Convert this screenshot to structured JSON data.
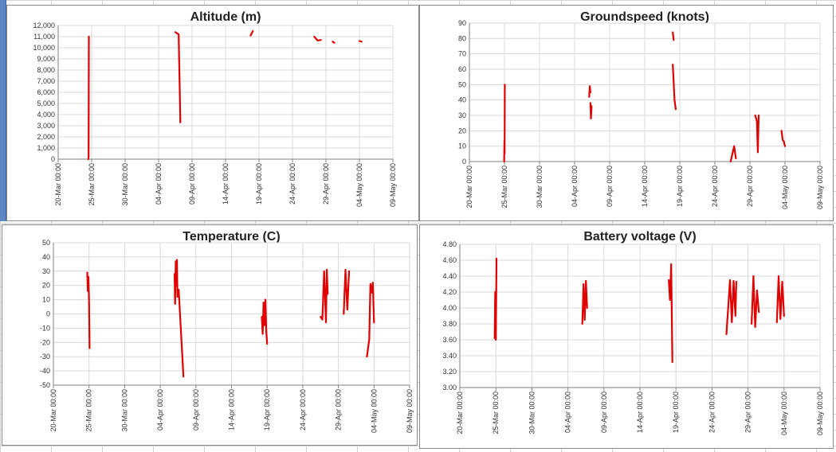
{
  "chart_data": [
    {
      "type": "line",
      "title": "Altitude (m)",
      "xlabel": "",
      "ylabel": "",
      "ylim": [
        0,
        12000
      ],
      "yticks": [
        "0",
        "1,000",
        "2,000",
        "3,000",
        "4,000",
        "5,000",
        "6,000",
        "7,000",
        "8,000",
        "9,000",
        "10,000",
        "11,000",
        "12,000"
      ],
      "xticks": [
        "20-Mar 00:00",
        "25-Mar 00:00",
        "30-Mar 00:00",
        "04-Apr 00:00",
        "09-Apr 00:00",
        "14-Apr 00:00",
        "19-Apr 00:00",
        "24-Apr 00:00",
        "29-Apr 00:00",
        "04-May 00:00",
        "09-May 00:00"
      ],
      "xlim": [
        "2021-03-20",
        "2021-05-09"
      ],
      "grid": true,
      "color": "#e00000",
      "segments": [
        [
          [
            "2021-03-24T12:00",
            0
          ],
          [
            "2021-03-24T13:00",
            200
          ],
          [
            "2021-03-24T14:00",
            11000
          ]
        ],
        [
          [
            "2021-04-06T12:00",
            11400
          ],
          [
            "2021-04-07T00:00",
            11200
          ],
          [
            "2021-04-07T06:00",
            3300
          ]
        ],
        [
          [
            "2021-04-17T18:00",
            11100
          ],
          [
            "2021-04-18T00:00",
            11400
          ],
          [
            "2021-04-18T02:00",
            11500
          ]
        ],
        [
          [
            "2021-04-27T06:00",
            11000
          ],
          [
            "2021-04-27T18:00",
            10650
          ],
          [
            "2021-04-28T06:00",
            10700
          ]
        ],
        [
          [
            "2021-04-30T00:00",
            10550
          ],
          [
            "2021-04-30T06:00",
            10450
          ]
        ],
        [
          [
            "2021-05-04T00:00",
            10600
          ],
          [
            "2021-05-04T08:00",
            10550
          ]
        ]
      ]
    },
    {
      "type": "line",
      "title": "Groundspeed (knots)",
      "xlabel": "",
      "ylabel": "",
      "ylim": [
        0,
        90
      ],
      "yticks": [
        "0",
        "10",
        "20",
        "30",
        "40",
        "50",
        "60",
        "70",
        "80",
        "90"
      ],
      "xticks": [
        "20-Mar 00:00",
        "25-Mar 00:00",
        "30-Mar 00:00",
        "04-Apr 00:00",
        "09-Apr 00:00",
        "14-Apr 00:00",
        "19-Apr 00:00",
        "24-Apr 00:00",
        "29-Apr 00:00",
        "04-May 00:00",
        "09-May 00:00"
      ],
      "xlim": [
        "2021-03-20",
        "2021-05-09"
      ],
      "grid": true,
      "color": "#e00000",
      "segments": [
        [
          [
            "2021-03-24T23:00",
            0
          ],
          [
            "2021-03-25T00:00",
            14
          ],
          [
            "2021-03-25T00:30",
            5
          ],
          [
            "2021-03-25T01:00",
            50
          ]
        ],
        [
          [
            "2021-04-06T02:00",
            42
          ],
          [
            "2021-04-06T04:00",
            49
          ],
          [
            "2021-04-06T06:00",
            45
          ]
        ],
        [
          [
            "2021-04-06T06:00",
            38
          ],
          [
            "2021-04-06T08:00",
            28
          ],
          [
            "2021-04-06T10:00",
            36
          ]
        ],
        [
          [
            "2021-04-18T00:00",
            84
          ],
          [
            "2021-04-18T03:00",
            79
          ]
        ],
        [
          [
            "2021-04-18T00:00",
            63
          ],
          [
            "2021-04-18T06:00",
            40
          ],
          [
            "2021-04-18T10:00",
            34
          ]
        ],
        [
          [
            "2021-04-26T06:00",
            0
          ],
          [
            "2021-04-26T18:00",
            10
          ],
          [
            "2021-04-27T00:00",
            2
          ]
        ],
        [
          [
            "2021-04-29T18:00",
            30
          ],
          [
            "2021-04-30T00:00",
            26
          ],
          [
            "2021-04-30T03:00",
            6
          ],
          [
            "2021-04-30T06:00",
            30
          ]
        ],
        [
          [
            "2021-05-03T12:00",
            20
          ],
          [
            "2021-05-03T16:00",
            14
          ],
          [
            "2021-05-03T20:00",
            13
          ],
          [
            "2021-05-04T00:00",
            10
          ]
        ]
      ]
    },
    {
      "type": "line",
      "title": "Temperature (C)",
      "xlabel": "",
      "ylabel": "",
      "ylim": [
        -50,
        50
      ],
      "yticks": [
        "-50",
        "-40",
        "-30",
        "-20",
        "-10",
        "0",
        "10",
        "20",
        "30",
        "40",
        "50"
      ],
      "xticks": [
        "20-Mar 00:00",
        "25-Mar 00:00",
        "30-Mar 00:00",
        "04-Apr 00:00",
        "09-Apr 00:00",
        "14-Apr 00:00",
        "19-Apr 00:00",
        "24-Apr 00:00",
        "29-Apr 00:00",
        "04-May 00:00",
        "09-May 00:00"
      ],
      "xlim": [
        "2021-03-20",
        "2021-05-09"
      ],
      "grid": true,
      "color": "#e00000",
      "segments": [
        [
          [
            "2021-03-24T18:00",
            29
          ],
          [
            "2021-03-24T20:00",
            16
          ],
          [
            "2021-03-24T22:00",
            26
          ],
          [
            "2021-03-25T00:00",
            10
          ],
          [
            "2021-03-25T02:00",
            -24
          ]
        ],
        [
          [
            "2021-04-06T00:00",
            28
          ],
          [
            "2021-04-06T02:00",
            7
          ],
          [
            "2021-04-06T04:00",
            37
          ],
          [
            "2021-04-06T06:00",
            20
          ],
          [
            "2021-04-06T08:00",
            38
          ],
          [
            "2021-04-06T10:00",
            12
          ],
          [
            "2021-04-06T14:00",
            17
          ],
          [
            "2021-04-07T06:00",
            -44
          ]
        ],
        [
          [
            "2021-04-18T06:00",
            -2
          ],
          [
            "2021-04-18T09:00",
            -14
          ],
          [
            "2021-04-18T12:00",
            8
          ],
          [
            "2021-04-18T15:00",
            -8
          ],
          [
            "2021-04-18T18:00",
            10
          ],
          [
            "2021-04-18T21:00",
            -12
          ],
          [
            "2021-04-19T00:00",
            -21
          ]
        ],
        [
          [
            "2021-04-26T12:00",
            -2
          ],
          [
            "2021-04-26T18:00",
            -4
          ],
          [
            "2021-04-27T00:00",
            30
          ],
          [
            "2021-04-27T06:00",
            -6
          ],
          [
            "2021-04-27T09:00",
            31
          ],
          [
            "2021-04-27T12:00",
            14
          ]
        ],
        [
          [
            "2021-04-29T18:00",
            0
          ],
          [
            "2021-04-30T00:00",
            31
          ],
          [
            "2021-04-30T06:00",
            3
          ],
          [
            "2021-04-30T12:00",
            30
          ]
        ],
        [
          [
            "2021-05-03T00:00",
            -30
          ],
          [
            "2021-05-03T08:00",
            -18
          ],
          [
            "2021-05-03T12:00",
            21
          ],
          [
            "2021-05-03T16:00",
            15
          ],
          [
            "2021-05-03T20:00",
            22
          ],
          [
            "2021-05-04T00:00",
            -6
          ]
        ]
      ]
    },
    {
      "type": "line",
      "title": "Battery voltage (V)",
      "xlabel": "",
      "ylabel": "",
      "ylim": [
        3.0,
        4.8
      ],
      "yticks": [
        "3.00",
        "3.20",
        "3.40",
        "3.60",
        "3.80",
        "4.00",
        "4.20",
        "4.40",
        "4.60",
        "4.80"
      ],
      "xticks": [
        "20-Mar 00:00",
        "25-Mar 00:00",
        "30-Mar 00:00",
        "04-Apr 00:00",
        "09-Apr 00:00",
        "14-Apr 00:00",
        "19-Apr 00:00",
        "24-Apr 00:00",
        "29-Apr 00:00",
        "04-May 00:00",
        "09-May 00:00"
      ],
      "xlim": [
        "2021-03-20",
        "2021-05-09"
      ],
      "grid": true,
      "color": "#e00000",
      "segments": [
        [
          [
            "2021-03-24T20:00",
            3.62
          ],
          [
            "2021-03-24T22:00",
            4.2
          ],
          [
            "2021-03-25T00:00",
            3.6
          ],
          [
            "2021-03-25T02:00",
            4.62
          ]
        ],
        [
          [
            "2021-04-06T00:00",
            3.8
          ],
          [
            "2021-04-06T04:00",
            4.3
          ],
          [
            "2021-04-06T08:00",
            3.85
          ],
          [
            "2021-04-06T12:00",
            4.34
          ],
          [
            "2021-04-06T16:00",
            4.0
          ]
        ],
        [
          [
            "2021-04-18T00:00",
            4.35
          ],
          [
            "2021-04-18T04:00",
            4.1
          ],
          [
            "2021-04-18T08:00",
            4.55
          ],
          [
            "2021-04-18T12:00",
            3.32
          ]
        ],
        [
          [
            "2021-04-26T00:00",
            3.67
          ],
          [
            "2021-04-26T12:00",
            4.35
          ],
          [
            "2021-04-26T18:00",
            3.82
          ],
          [
            "2021-04-27T00:00",
            4.34
          ],
          [
            "2021-04-27T06:00",
            3.9
          ],
          [
            "2021-04-27T09:00",
            4.33
          ]
        ],
        [
          [
            "2021-04-29T12:00",
            3.8
          ],
          [
            "2021-04-29T18:00",
            4.4
          ],
          [
            "2021-04-30T00:00",
            3.76
          ],
          [
            "2021-04-30T06:00",
            4.22
          ],
          [
            "2021-04-30T12:00",
            3.95
          ]
        ],
        [
          [
            "2021-05-03T00:00",
            3.82
          ],
          [
            "2021-05-03T06:00",
            4.4
          ],
          [
            "2021-05-03T12:00",
            3.86
          ],
          [
            "2021-05-03T18:00",
            4.33
          ],
          [
            "2021-05-04T00:00",
            3.9
          ]
        ]
      ]
    }
  ]
}
